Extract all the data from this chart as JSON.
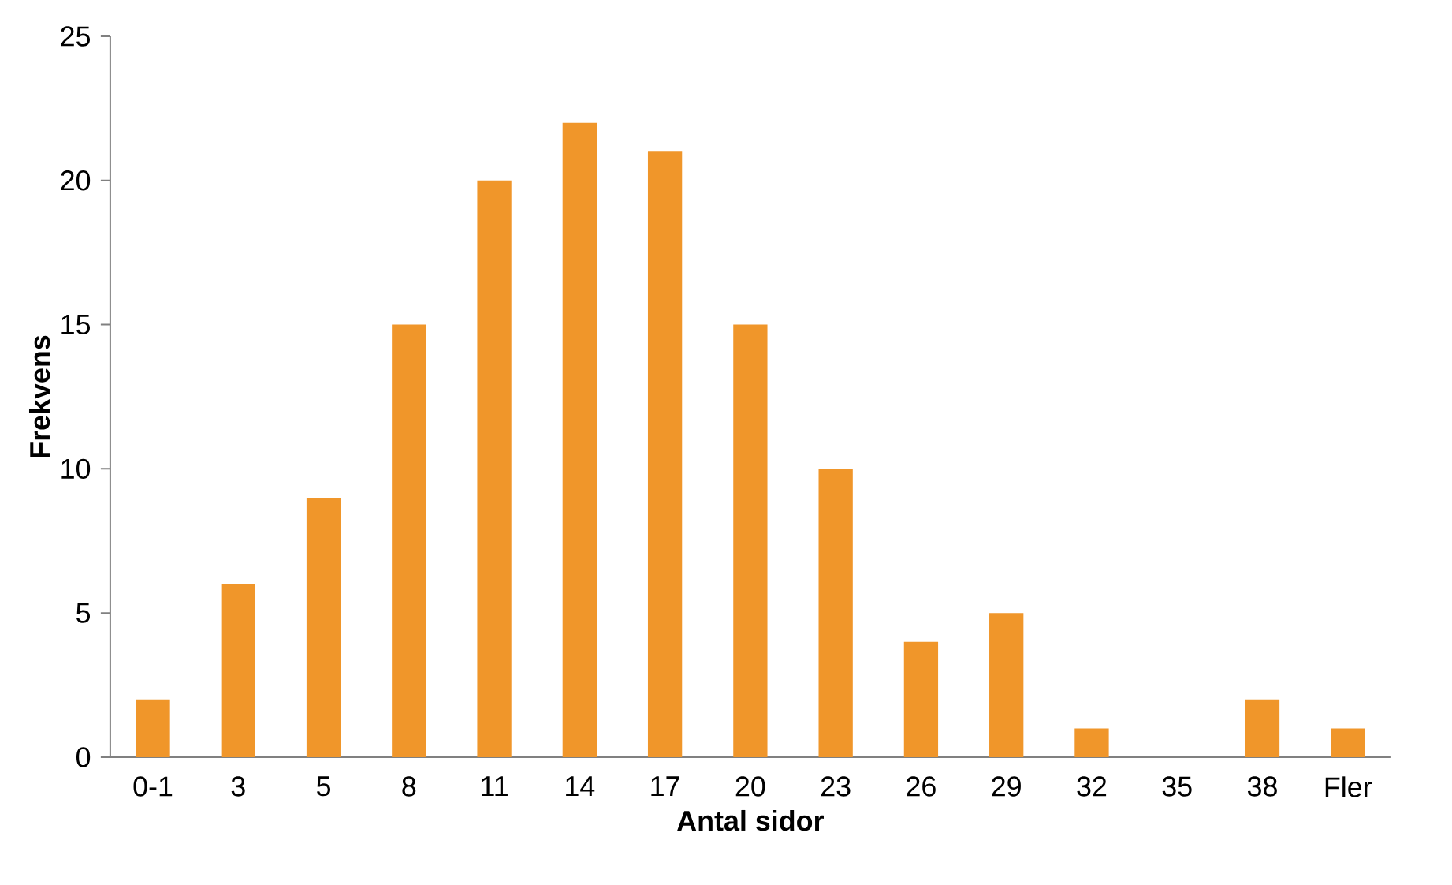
{
  "chart_data": {
    "type": "bar",
    "xlabel": "Antal sidor",
    "ylabel": "Frekvens",
    "categories": [
      "0-1",
      "3",
      "5",
      "8",
      "11",
      "14",
      "17",
      "20",
      "23",
      "26",
      "29",
      "32",
      "35",
      "38",
      "Fler"
    ],
    "values": [
      2,
      6,
      9,
      15,
      20,
      22,
      21,
      15,
      10,
      4,
      5,
      1,
      0,
      2,
      1
    ],
    "color": "#f0962a",
    "ylim": [
      0,
      25
    ],
    "yticks": [
      0,
      5,
      10,
      15,
      20,
      25
    ]
  }
}
